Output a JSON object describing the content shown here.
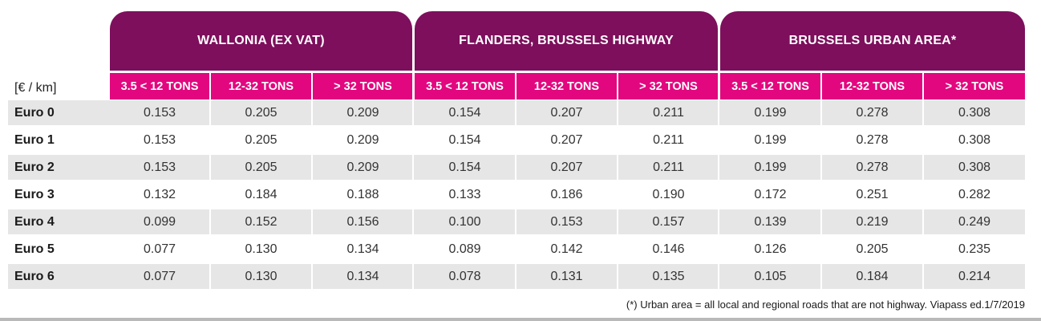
{
  "table": {
    "unit_label": "[€ / km]",
    "groups": [
      {
        "title": "WALLONIA (EX VAT)"
      },
      {
        "title": "FLANDERS, BRUSSELS HIGHWAY"
      },
      {
        "title": "BRUSSELS URBAN AREA*"
      }
    ],
    "subheaders": [
      "3.5 < 12 TONS",
      "12-32 TONS",
      "> 32 TONS",
      "3.5 < 12 TONS",
      "12-32 TONS",
      "> 32 TONS",
      "3.5 < 12 TONS",
      "12-32 TONS",
      "> 32 TONS"
    ],
    "rows": [
      {
        "label": "Euro 0",
        "values": [
          "0.153",
          "0.205",
          "0.209",
          "0.154",
          "0.207",
          "0.211",
          "0.199",
          "0.278",
          "0.308"
        ]
      },
      {
        "label": "Euro 1",
        "values": [
          "0.153",
          "0.205",
          "0.209",
          "0.154",
          "0.207",
          "0.211",
          "0.199",
          "0.278",
          "0.308"
        ]
      },
      {
        "label": "Euro 2",
        "values": [
          "0.153",
          "0.205",
          "0.209",
          "0.154",
          "0.207",
          "0.211",
          "0.199",
          "0.278",
          "0.308"
        ]
      },
      {
        "label": "Euro 3",
        "values": [
          "0.132",
          "0.184",
          "0.188",
          "0.133",
          "0.186",
          "0.190",
          "0.172",
          "0.251",
          "0.282"
        ]
      },
      {
        "label": "Euro 4",
        "values": [
          "0.099",
          "0.152",
          "0.156",
          "0.100",
          "0.153",
          "0.157",
          "0.139",
          "0.219",
          "0.249"
        ]
      },
      {
        "label": "Euro 5",
        "values": [
          "0.077",
          "0.130",
          "0.134",
          "0.089",
          "0.142",
          "0.146",
          "0.126",
          "0.205",
          "0.235"
        ]
      },
      {
        "label": "Euro 6",
        "values": [
          "0.077",
          "0.130",
          "0.134",
          "0.078",
          "0.131",
          "0.135",
          "0.105",
          "0.184",
          "0.214"
        ]
      }
    ]
  },
  "footnote": "(*) Urban area = all local and regional roads that are not highway. Viapass ed.1/7/2019",
  "colors": {
    "group_header": "#7d0f5c",
    "sub_header": "#e2077f",
    "stripe": "#e6e6e6"
  }
}
